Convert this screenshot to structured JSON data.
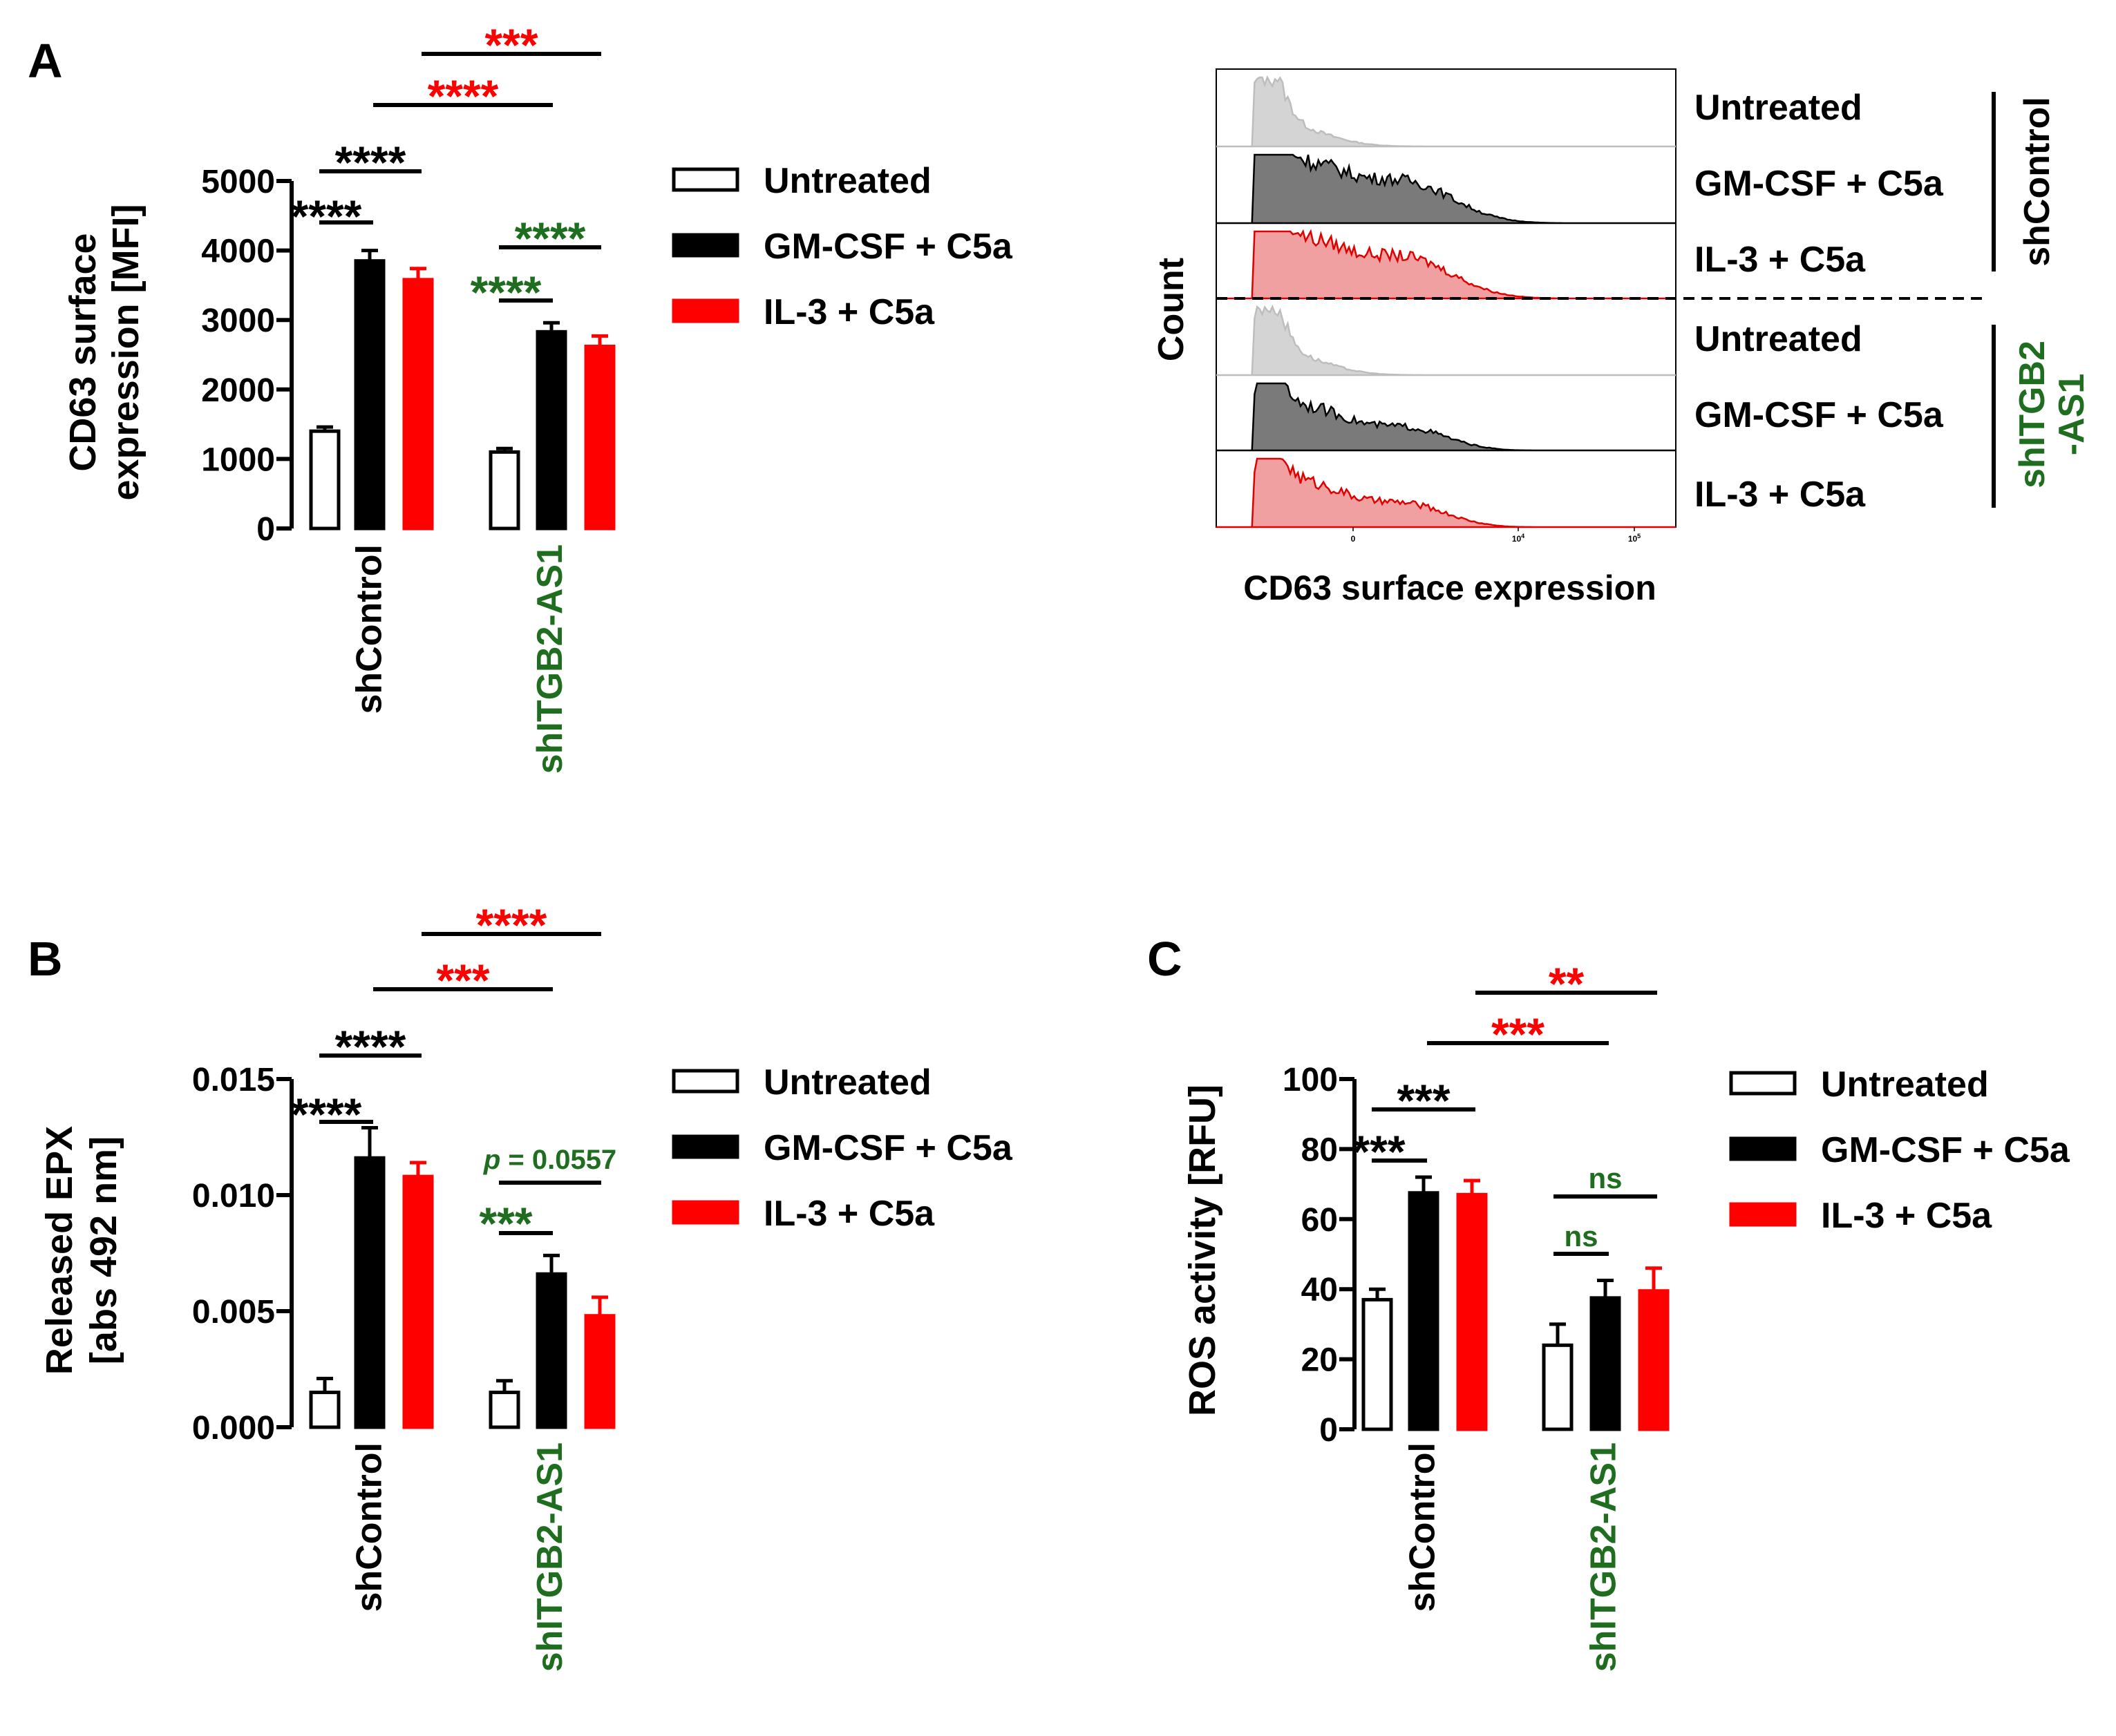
{
  "colors": {
    "black": "#000000",
    "red": "#ff0000",
    "green": "#1f6e1f",
    "histGray": "#d4d4d4",
    "histDark": "#7a7a7a",
    "histRed": "#f0a0a0"
  },
  "legend": {
    "items": [
      {
        "label": "Untreated",
        "style": "open"
      },
      {
        "label": "GM-CSF + C5a",
        "style": "black"
      },
      {
        "label": "IL-3 + C5a",
        "style": "red"
      }
    ]
  },
  "chart_data": [
    {
      "panel_label": "A",
      "type": "bar",
      "ylabel_line1": "CD63 surface",
      "ylabel_line2": "expression [MFI]",
      "ylim": [
        0,
        5000
      ],
      "yticks": [
        "0",
        "1000",
        "2000",
        "3000",
        "4000",
        "5000"
      ],
      "ytick_values": [
        0,
        1000,
        2000,
        3000,
        4000,
        5000
      ],
      "categories": [
        {
          "label": "shControl",
          "color": "black"
        },
        {
          "label": "shITGB2-AS1",
          "color": "green"
        }
      ],
      "series": [
        {
          "name": "Untreated",
          "values": [
            1400,
            1100
          ],
          "errors": [
            60,
            50
          ]
        },
        {
          "name": "GM-CSF + C5a",
          "values": [
            3850,
            2830
          ],
          "errors": [
            150,
            130
          ]
        },
        {
          "name": "IL-3 + C5a",
          "values": [
            3580,
            2620
          ],
          "errors": [
            160,
            150
          ]
        }
      ],
      "significance": [
        {
          "text": "****",
          "color": "black",
          "kind": "short"
        },
        {
          "text": "****",
          "color": "black",
          "kind": "long"
        },
        {
          "text": "****",
          "color": "green",
          "kind": "short"
        },
        {
          "text": "****",
          "color": "green",
          "kind": "long"
        },
        {
          "text": "****",
          "color": "red",
          "kind": "cross1"
        },
        {
          "text": "***",
          "color": "red",
          "kind": "cross2"
        }
      ]
    },
    {
      "panel_label": "B",
      "type": "bar",
      "ylabel_line1": "Released EPX",
      "ylabel_line2": "[abs 492 nm]",
      "ylim": [
        0,
        0.015
      ],
      "yticks": [
        "0.000",
        "0.005",
        "0.010",
        "0.015"
      ],
      "ytick_values": [
        0,
        0.005,
        0.01,
        0.015
      ],
      "categories": [
        {
          "label": "shControl",
          "color": "black"
        },
        {
          "label": "shITGB2-AS1",
          "color": "green"
        }
      ],
      "series": [
        {
          "name": "Untreated",
          "values": [
            0.0015,
            0.0015
          ],
          "errors": [
            0.0006,
            0.0005
          ]
        },
        {
          "name": "GM-CSF + C5a",
          "values": [
            0.0116,
            0.0066
          ],
          "errors": [
            0.0013,
            0.0008
          ]
        },
        {
          "name": "IL-3 + C5a",
          "values": [
            0.0108,
            0.0048
          ],
          "errors": [
            0.0006,
            0.0008
          ]
        }
      ],
      "significance": [
        {
          "text": "****",
          "color": "black",
          "kind": "short"
        },
        {
          "text": "****",
          "color": "black",
          "kind": "long"
        },
        {
          "text": "***",
          "color": "green",
          "kind": "short"
        },
        {
          "text": "p = 0.0557",
          "color": "green",
          "kind": "long",
          "italic_p": true
        },
        {
          "text": "***",
          "color": "red",
          "kind": "cross1"
        },
        {
          "text": "****",
          "color": "red",
          "kind": "cross2"
        }
      ]
    },
    {
      "panel_label": "C",
      "type": "bar",
      "ylabel_line1": "ROS activity [RFU]",
      "ylabel_line2": "",
      "ylim": [
        0,
        100
      ],
      "yticks": [
        "0",
        "20",
        "40",
        "60",
        "80",
        "100"
      ],
      "ytick_values": [
        0,
        20,
        40,
        60,
        80,
        100
      ],
      "categories": [
        {
          "label": "shControl",
          "color": "black"
        },
        {
          "label": "shITGB2-AS1",
          "color": "green"
        }
      ],
      "series": [
        {
          "name": "Untreated",
          "values": [
            37,
            24
          ],
          "errors": [
            3,
            6
          ]
        },
        {
          "name": "GM-CSF + C5a",
          "values": [
            67.5,
            37.5
          ],
          "errors": [
            4.5,
            5
          ]
        },
        {
          "name": "IL-3 + C5a",
          "values": [
            67,
            39.5
          ],
          "errors": [
            4,
            6.5
          ]
        }
      ],
      "significance": [
        {
          "text": "***",
          "color": "black",
          "kind": "short"
        },
        {
          "text": "***",
          "color": "black",
          "kind": "long"
        },
        {
          "text": "ns",
          "color": "green",
          "kind": "short"
        },
        {
          "text": "ns",
          "color": "green",
          "kind": "long"
        },
        {
          "text": "***",
          "color": "red",
          "kind": "cross1"
        },
        {
          "text": "**",
          "color": "red",
          "kind": "cross2"
        }
      ]
    }
  ],
  "histogram": {
    "ylabel": "Count",
    "xlabel": "CD63 surface expression",
    "xticks": [
      "0",
      "10^4",
      "10^5"
    ],
    "row_labels": [
      "Untreated",
      "GM-CSF + C5a",
      "IL-3 + C5a",
      "Untreated",
      "GM-CSF + C5a",
      "IL-3 + C5a"
    ],
    "group_labels": [
      {
        "text": "shControl",
        "color": "black"
      },
      {
        "text": "shITGB2",
        "color": "green"
      },
      {
        "text": "-AS1",
        "color": "green"
      }
    ]
  }
}
